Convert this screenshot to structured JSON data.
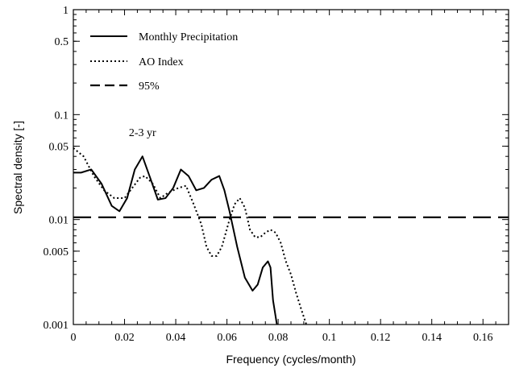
{
  "chart_data": {
    "type": "line",
    "xlabel": "Frequency (cycles/month)",
    "ylabel": "Spectral density [-]",
    "xlim": [
      0,
      0.17
    ],
    "ylim": [
      0.001,
      1
    ],
    "yscale": "log",
    "x_ticks": [
      0,
      0.02,
      0.04,
      0.06,
      0.08,
      0.1,
      0.12,
      0.14,
      0.16
    ],
    "x_tick_labels": [
      "0",
      "0.02",
      "0.04",
      "0.06",
      "0.08",
      "0.1",
      "0.12",
      "0.14",
      "0.16"
    ],
    "y_ticks": [
      0.001,
      0.005,
      0.01,
      0.05,
      0.1,
      0.5,
      1
    ],
    "y_tick_labels": [
      "0.001",
      "0.005",
      "0.01",
      "0.05",
      "0.1",
      "0.5",
      "1"
    ],
    "grid": false,
    "legend_position": "top-left",
    "annotation": {
      "text": "2-3 yr",
      "x": 0.027,
      "y": 0.06
    },
    "series": [
      {
        "name": "Monthly Precipitation",
        "style": "solid",
        "x": [
          0,
          0.003,
          0.007,
          0.011,
          0.015,
          0.018,
          0.021,
          0.024,
          0.027,
          0.03,
          0.033,
          0.036,
          0.039,
          0.042,
          0.045,
          0.048,
          0.051,
          0.054,
          0.057,
          0.059,
          0.061,
          0.064,
          0.067,
          0.07,
          0.072,
          0.074,
          0.076,
          0.077,
          0.078,
          0.0795
        ],
        "values": [
          0.028,
          0.028,
          0.03,
          0.022,
          0.0135,
          0.012,
          0.016,
          0.03,
          0.04,
          0.025,
          0.0155,
          0.016,
          0.02,
          0.03,
          0.026,
          0.019,
          0.02,
          0.024,
          0.026,
          0.019,
          0.012,
          0.0055,
          0.0028,
          0.0021,
          0.0024,
          0.0035,
          0.004,
          0.0035,
          0.0017,
          0.001
        ]
      },
      {
        "name": "AO Index",
        "style": "dotted",
        "x": [
          0,
          0.004,
          0.008,
          0.012,
          0.016,
          0.02,
          0.023,
          0.026,
          0.028,
          0.031,
          0.034,
          0.037,
          0.041,
          0.044,
          0.047,
          0.05,
          0.052,
          0.054,
          0.056,
          0.058,
          0.061,
          0.063,
          0.065,
          0.067,
          0.069,
          0.071,
          0.073,
          0.075,
          0.077,
          0.079,
          0.081,
          0.083,
          0.085,
          0.087,
          0.089,
          0.091
        ],
        "values": [
          0.048,
          0.04,
          0.026,
          0.019,
          0.016,
          0.016,
          0.02,
          0.025,
          0.026,
          0.022,
          0.016,
          0.018,
          0.02,
          0.021,
          0.014,
          0.009,
          0.0055,
          0.0045,
          0.0045,
          0.0055,
          0.01,
          0.014,
          0.016,
          0.013,
          0.008,
          0.0068,
          0.0068,
          0.0075,
          0.008,
          0.0075,
          0.006,
          0.004,
          0.003,
          0.002,
          0.0014,
          0.001
        ]
      },
      {
        "name": "95%",
        "style": "dashed",
        "x": [
          0,
          0.17
        ],
        "values": [
          0.0105,
          0.0105
        ]
      }
    ]
  }
}
